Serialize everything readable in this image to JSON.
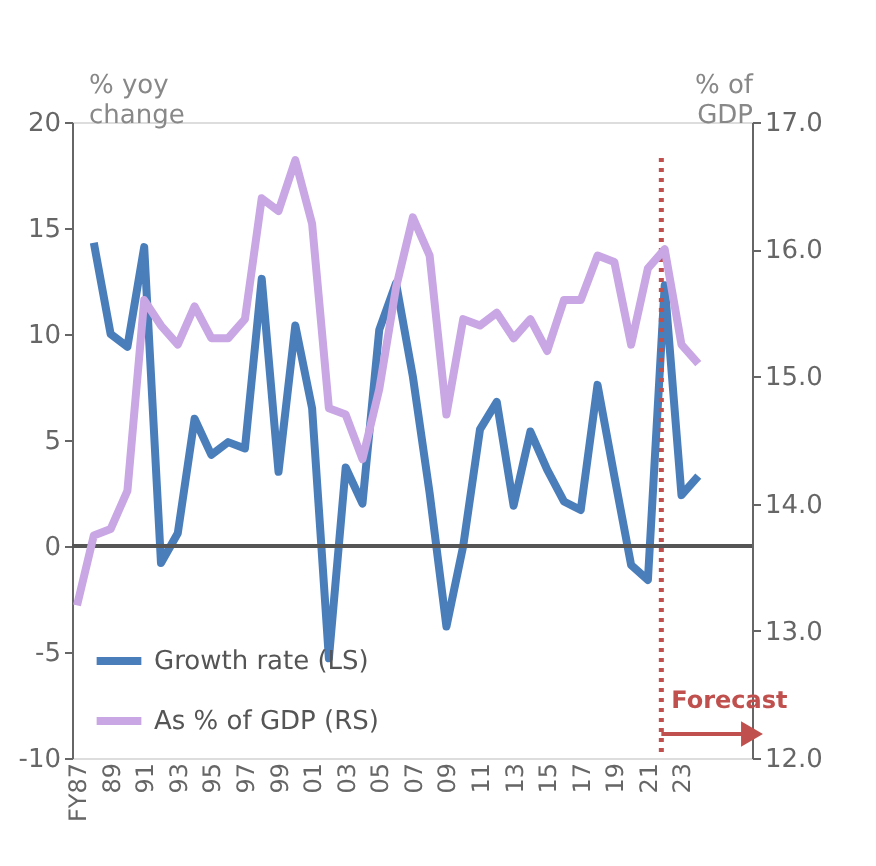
{
  "chart_data": {
    "type": "line",
    "ylabel": "% yoy change",
    "y2label": "% of GDP",
    "x": [
      1987,
      1988,
      1989,
      1990,
      1991,
      1992,
      1993,
      1994,
      1995,
      1996,
      1997,
      1998,
      1999,
      2000,
      2001,
      2002,
      2003,
      2004,
      2005,
      2006,
      2007,
      2008,
      2009,
      2010,
      2011,
      2012,
      2013,
      2014,
      2015,
      2016,
      2017,
      2018,
      2019,
      2020,
      2021,
      2022,
      2023,
      2024
    ],
    "series": [
      {
        "name": "Growth rate (LS)",
        "color": "#4a7ebb",
        "values": [
          null,
          14.3,
          10,
          9.4,
          14.1,
          -0.8,
          0.6,
          6,
          4.3,
          4.9,
          4.6,
          12.6,
          3.5,
          10.4,
          6.5,
          -5.3,
          3.7,
          2,
          10.2,
          12.4,
          8,
          2.5,
          -3.8,
          0,
          5.5,
          6.8,
          1.9,
          5.4,
          3.6,
          2.1,
          1.7,
          7.6,
          3.3,
          -0.9,
          -1.6,
          12.3,
          2.4,
          3.3
        ]
      },
      {
        "name": "As % of GDP (RS)",
        "color": "#c9a6e4",
        "axis": "y2",
        "values": [
          13.2,
          13.75,
          13.8,
          14.1,
          15.6,
          15.4,
          15.25,
          15.55,
          15.3,
          15.3,
          15.45,
          16.4,
          16.3,
          16.7,
          16.2,
          14.75,
          14.7,
          14.35,
          14.9,
          15.7,
          16.25,
          15.95,
          14.7,
          15.45,
          15.4,
          15.5,
          15.3,
          15.45,
          15.2,
          15.6,
          15.6,
          15.95,
          15.9,
          15.25,
          15.85,
          16.0,
          15.25,
          15.1
        ]
      }
    ],
    "xlim": [
      1986.7,
      2027.2
    ],
    "xticks": [
      {
        "value": 1987,
        "label": "FY87"
      },
      {
        "value": 1989,
        "label": "89"
      },
      {
        "value": 1991,
        "label": "91"
      },
      {
        "value": 1993,
        "label": "93"
      },
      {
        "value": 1995,
        "label": "95"
      },
      {
        "value": 1997,
        "label": "97"
      },
      {
        "value": 1999,
        "label": "99"
      },
      {
        "value": 2001,
        "label": "01"
      },
      {
        "value": 2003,
        "label": "03"
      },
      {
        "value": 2005,
        "label": "05"
      },
      {
        "value": 2007,
        "label": "07"
      },
      {
        "value": 2009,
        "label": "09"
      },
      {
        "value": 2011,
        "label": "11"
      },
      {
        "value": 2013,
        "label": "13"
      },
      {
        "value": 2015,
        "label": "15"
      },
      {
        "value": 2017,
        "label": "17"
      },
      {
        "value": 2019,
        "label": "19"
      },
      {
        "value": 2021,
        "label": "21"
      },
      {
        "value": 2023,
        "label": "23"
      }
    ],
    "ylim": [
      -10,
      20
    ],
    "yticks": [
      -10,
      -5,
      0,
      5,
      10,
      15,
      20
    ],
    "y2lim": [
      12,
      17
    ],
    "y2ticks": [
      {
        "value": 12,
        "label": "12.0"
      },
      {
        "value": 13,
        "label": "13.0"
      },
      {
        "value": 14,
        "label": "14.0"
      },
      {
        "value": 15,
        "label": "15.0"
      },
      {
        "value": 16,
        "label": "16.0"
      },
      {
        "value": 17,
        "label": "17.0"
      }
    ],
    "ref_lines": [
      {
        "axis": "y",
        "value": 0,
        "color": "#555555",
        "line_style": "solid"
      },
      {
        "axis": "x",
        "value": 2021.8,
        "label": "Forecast",
        "color": "#c0504d",
        "line_style": "dotted"
      }
    ],
    "grid": false,
    "legend": "bottom left",
    "marker": "none",
    "line_style": "solid"
  }
}
